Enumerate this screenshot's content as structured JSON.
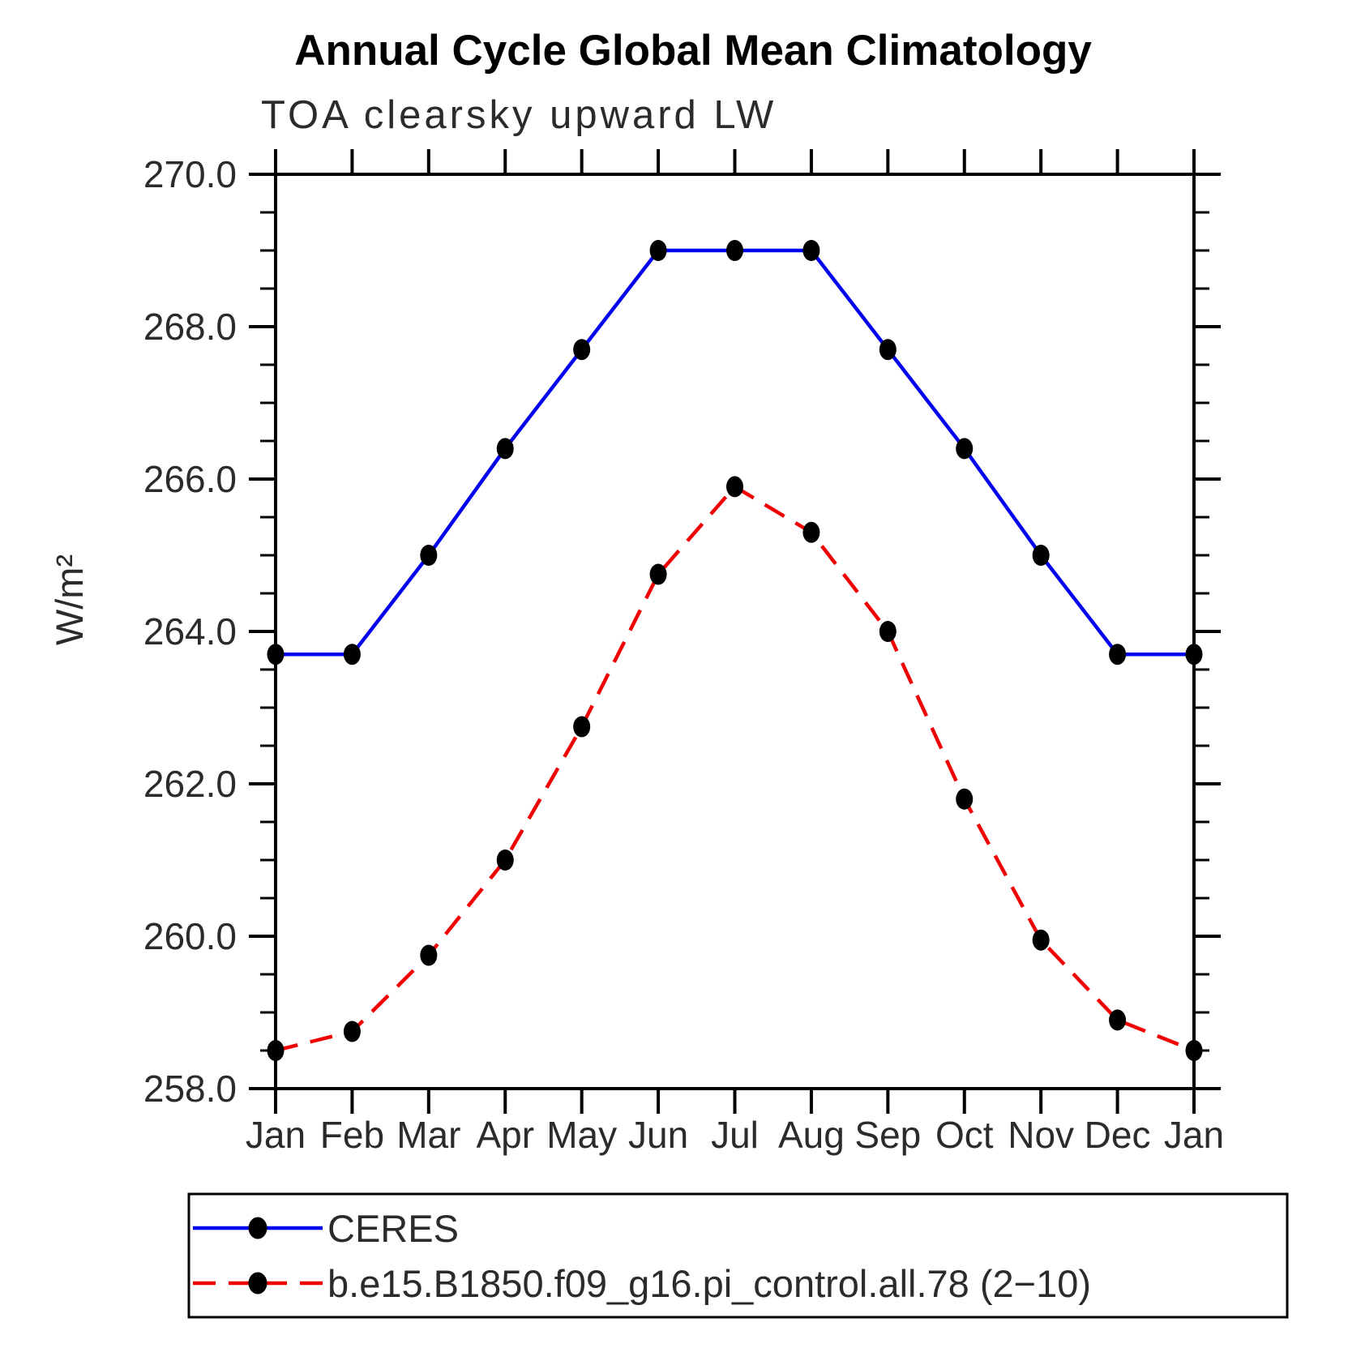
{
  "chart_data": {
    "type": "line",
    "title": "Annual Cycle Global Mean Climatology",
    "subtitle": "TOA clearsky upward LW",
    "ylabel": "W/m²",
    "x_categories": [
      "Jan",
      "Feb",
      "Mar",
      "Apr",
      "May",
      "Jun",
      "Jul",
      "Aug",
      "Sep",
      "Oct",
      "Nov",
      "Dec",
      "Jan"
    ],
    "ylim": [
      258.0,
      270.0
    ],
    "y_major_ticks": [
      258.0,
      260.0,
      262.0,
      264.0,
      266.0,
      268.0,
      270.0
    ],
    "y_major_tick_labels": [
      "258.0",
      "260.0",
      "262.0",
      "264.0",
      "266.0",
      "268.0",
      "270.0"
    ],
    "y_minor_step": 0.5,
    "grid": "off",
    "legend_position": "bottom",
    "axis_color": "#000000",
    "marker_color": "#000000",
    "series": [
      {
        "name": "CERES",
        "color": "#0000f0",
        "line_style": "solid",
        "values": [
          263.7,
          263.7,
          265.0,
          266.4,
          267.7,
          269.0,
          269.0,
          269.0,
          267.7,
          266.4,
          265.0,
          263.7,
          263.7
        ]
      },
      {
        "name": "b.e15.B1850.f09_g16.pi_control.all.78 (2−10)",
        "color": "#f00000",
        "line_style": "dashed",
        "values": [
          258.5,
          258.75,
          259.75,
          261.0,
          262.75,
          264.75,
          265.9,
          265.3,
          264.0,
          261.8,
          259.95,
          258.9,
          258.5
        ]
      }
    ]
  }
}
